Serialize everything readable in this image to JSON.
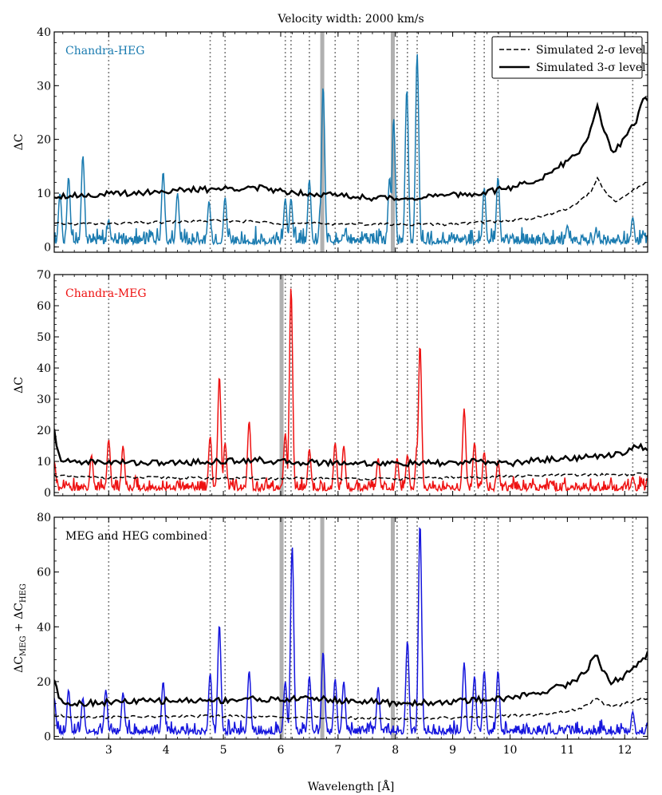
{
  "figure": {
    "title": "Velocity width: 2000 km/s",
    "xlabel": "Wavelength [Å]",
    "xlim": [
      2.05,
      12.4
    ],
    "xticks": [
      3,
      4,
      5,
      6,
      7,
      8,
      9,
      10,
      11,
      12
    ],
    "xtick_labels": [
      "3",
      "4",
      "5",
      "6",
      "7",
      "8",
      "9",
      "10",
      "11",
      "12"
    ],
    "colors": {
      "heg": "#1a7bb0",
      "meg": "#ee1111",
      "combined": "#1515dd",
      "threshold": "#000000",
      "band": "#b0b0b0",
      "guide": "#808080"
    },
    "legend": {
      "items": [
        {
          "label": "Simulated 2-σ level",
          "style": "dashed"
        },
        {
          "label": "Simulated 3-σ level",
          "style": "solid"
        }
      ]
    },
    "vertical_lines": [
      3.0,
      4.77,
      5.03,
      6.08,
      6.18,
      6.5,
      6.95,
      7.35,
      8.03,
      8.21,
      8.38,
      9.38,
      9.55,
      9.79,
      12.14
    ]
  },
  "chart_data": [
    {
      "type": "line",
      "panel_label": "Chandra-HEG",
      "ylabel": "ΔC",
      "ylim": [
        -1,
        40
      ],
      "yticks": [
        0,
        10,
        20,
        30,
        40
      ],
      "bands": [
        [
          6.69,
          6.76
        ],
        [
          7.92,
          7.99
        ]
      ],
      "baseline": 0.5,
      "noise_amp": 1.6,
      "peaks": [
        [
          2.15,
          10
        ],
        [
          2.3,
          13
        ],
        [
          2.55,
          17
        ],
        [
          3.0,
          5
        ],
        [
          3.95,
          14
        ],
        [
          4.2,
          10
        ],
        [
          4.75,
          8.5
        ],
        [
          5.03,
          9.2
        ],
        [
          6.08,
          9
        ],
        [
          6.18,
          9
        ],
        [
          6.5,
          12.5
        ],
        [
          6.7,
          8.5
        ],
        [
          6.74,
          30
        ],
        [
          7.9,
          13
        ],
        [
          7.97,
          24
        ],
        [
          8.2,
          29.5
        ],
        [
          8.38,
          36
        ],
        [
          9.55,
          11
        ],
        [
          9.79,
          13
        ],
        [
          11.0,
          4
        ],
        [
          11.5,
          3
        ],
        [
          12.14,
          5.5
        ]
      ],
      "series": [
        {
          "name": "Chandra-HEG ΔC"
        },
        {
          "name": "Simulated 2-σ level",
          "points": [
            [
              2.05,
              4.3
            ],
            [
              3.0,
              4.3
            ],
            [
              4.0,
              4.6
            ],
            [
              5.0,
              4.9
            ],
            [
              5.5,
              4.7
            ],
            [
              6.0,
              4.4
            ],
            [
              7.0,
              4.3
            ],
            [
              8.0,
              4.2
            ],
            [
              9.0,
              4.2
            ],
            [
              9.5,
              4.6
            ],
            [
              10.0,
              4.9
            ],
            [
              10.5,
              5.5
            ],
            [
              11.0,
              7.0
            ],
            [
              11.4,
              10.0
            ],
            [
              11.52,
              12.8
            ],
            [
              11.7,
              9.5
            ],
            [
              11.85,
              8.3
            ],
            [
              12.0,
              9.5
            ],
            [
              12.4,
              12.2
            ]
          ]
        },
        {
          "name": "Simulated 3-σ level",
          "points": [
            [
              2.05,
              9.5
            ],
            [
              3.0,
              9.8
            ],
            [
              4.0,
              10.4
            ],
            [
              5.0,
              10.8
            ],
            [
              5.5,
              11.1
            ],
            [
              6.0,
              10.4
            ],
            [
              6.5,
              10.0
            ],
            [
              7.0,
              9.6
            ],
            [
              7.5,
              9.2
            ],
            [
              8.0,
              9.0
            ],
            [
              9.0,
              9.6
            ],
            [
              9.5,
              10.0
            ],
            [
              10.0,
              11.0
            ],
            [
              10.5,
              12.5
            ],
            [
              10.8,
              14.5
            ],
            [
              11.2,
              17.5
            ],
            [
              11.42,
              22.0
            ],
            [
              11.52,
              26.0
            ],
            [
              11.62,
              22.5
            ],
            [
              11.8,
              17.5
            ],
            [
              12.0,
              20.0
            ],
            [
              12.2,
              23.5
            ],
            [
              12.35,
              28.0
            ],
            [
              12.4,
              27.5
            ]
          ]
        }
      ]
    },
    {
      "type": "line",
      "panel_label": "Chandra-MEG",
      "ylabel": "ΔC",
      "ylim": [
        -1,
        70
      ],
      "yticks": [
        0,
        10,
        20,
        30,
        40,
        50,
        60,
        70
      ],
      "bands": [
        [
          5.98,
          6.05
        ]
      ],
      "baseline": 0.6,
      "noise_amp": 2.2,
      "peaks": [
        [
          2.05,
          10
        ],
        [
          2.7,
          12
        ],
        [
          3.0,
          17
        ],
        [
          3.25,
          15
        ],
        [
          4.77,
          18
        ],
        [
          4.93,
          37.5
        ],
        [
          5.03,
          16
        ],
        [
          5.45,
          23
        ],
        [
          6.08,
          19
        ],
        [
          6.18,
          66
        ],
        [
          6.5,
          14
        ],
        [
          6.95,
          16
        ],
        [
          7.1,
          15
        ],
        [
          7.7,
          11
        ],
        [
          8.03,
          11
        ],
        [
          8.21,
          12
        ],
        [
          8.38,
          15.5
        ],
        [
          8.43,
          47.5
        ],
        [
          9.2,
          27
        ],
        [
          9.38,
          16
        ],
        [
          9.55,
          13
        ],
        [
          9.79,
          10
        ],
        [
          12.14,
          5
        ],
        [
          12.4,
          4.5
        ]
      ],
      "series": [
        {
          "name": "Chandra-MEG ΔC"
        },
        {
          "name": "Simulated 2-σ level",
          "points": [
            [
              2.05,
              5.5
            ],
            [
              2.4,
              5.0
            ],
            [
              3.0,
              4.8
            ],
            [
              4.0,
              4.8
            ],
            [
              5.0,
              4.6
            ],
            [
              6.0,
              4.5
            ],
            [
              7.0,
              4.5
            ],
            [
              8.0,
              4.4
            ],
            [
              9.0,
              4.8
            ],
            [
              10.0,
              5.2
            ],
            [
              11.0,
              5.6
            ],
            [
              12.0,
              5.8
            ],
            [
              12.4,
              6.0
            ]
          ]
        },
        {
          "name": "Simulated 3-σ level",
          "points": [
            [
              2.05,
              20.0
            ],
            [
              2.1,
              13.0
            ],
            [
              2.2,
              10.0
            ],
            [
              3.0,
              9.8
            ],
            [
              4.0,
              9.5
            ],
            [
              5.0,
              10.0
            ],
            [
              5.5,
              10.6
            ],
            [
              6.0,
              9.8
            ],
            [
              7.0,
              9.6
            ],
            [
              8.0,
              9.3
            ],
            [
              9.0,
              9.5
            ],
            [
              9.5,
              10.0
            ],
            [
              10.0,
              9.3
            ],
            [
              10.5,
              10.5
            ],
            [
              11.0,
              11.0
            ],
            [
              11.5,
              11.5
            ],
            [
              12.0,
              13.0
            ],
            [
              12.2,
              15.0
            ],
            [
              12.4,
              14.0
            ]
          ]
        }
      ]
    },
    {
      "type": "line",
      "panel_label": "MEG and HEG combined",
      "ylabel": "ΔC_MEG + ΔC_HEG",
      "ylim": [
        -1,
        80
      ],
      "yticks": [
        0,
        20,
        40,
        60,
        80
      ],
      "bands": [
        [
          5.98,
          6.05
        ],
        [
          6.69,
          6.76
        ],
        [
          7.92,
          7.99
        ]
      ],
      "baseline": 0.8,
      "noise_amp": 2.6,
      "peaks": [
        [
          2.05,
          14
        ],
        [
          2.3,
          17
        ],
        [
          2.55,
          14
        ],
        [
          2.95,
          17
        ],
        [
          3.25,
          16
        ],
        [
          3.95,
          20
        ],
        [
          4.77,
          23
        ],
        [
          4.93,
          41
        ],
        [
          5.45,
          24
        ],
        [
          6.08,
          20
        ],
        [
          6.2,
          69.5
        ],
        [
          6.5,
          22
        ],
        [
          6.74,
          31
        ],
        [
          6.95,
          21
        ],
        [
          7.1,
          20
        ],
        [
          7.7,
          18
        ],
        [
          8.21,
          35
        ],
        [
          8.43,
          78
        ],
        [
          9.2,
          27
        ],
        [
          9.38,
          22
        ],
        [
          9.55,
          24
        ],
        [
          9.79,
          24
        ],
        [
          11.0,
          4
        ],
        [
          12.14,
          9
        ],
        [
          12.4,
          5
        ]
      ],
      "series": [
        {
          "name": "Combined ΔC"
        },
        {
          "name": "Simulated 2-σ level",
          "points": [
            [
              2.05,
              7.5
            ],
            [
              3.0,
              7.0
            ],
            [
              4.0,
              7.2
            ],
            [
              5.0,
              7.4
            ],
            [
              6.0,
              7.0
            ],
            [
              7.0,
              6.8
            ],
            [
              8.0,
              6.5
            ],
            [
              9.0,
              6.8
            ],
            [
              10.0,
              7.5
            ],
            [
              10.5,
              8.0
            ],
            [
              11.0,
              9.0
            ],
            [
              11.4,
              11.5
            ],
            [
              11.5,
              14.5
            ],
            [
              11.65,
              11.5
            ],
            [
              11.85,
              11.0
            ],
            [
              12.0,
              12.0
            ],
            [
              12.4,
              14.0
            ]
          ]
        },
        {
          "name": "Simulated 3-σ level",
          "points": [
            [
              2.05,
              21.0
            ],
            [
              2.12,
              14.5
            ],
            [
              2.3,
              12.0
            ],
            [
              3.0,
              12.5
            ],
            [
              4.0,
              13.0
            ],
            [
              5.0,
              13.2
            ],
            [
              5.5,
              13.8
            ],
            [
              6.0,
              13.2
            ],
            [
              6.5,
              14.2
            ],
            [
              7.0,
              13.0
            ],
            [
              7.5,
              12.8
            ],
            [
              8.0,
              12.0
            ],
            [
              9.0,
              12.6
            ],
            [
              9.5,
              13.5
            ],
            [
              10.0,
              14.0
            ],
            [
              10.5,
              16.0
            ],
            [
              11.0,
              19.0
            ],
            [
              11.3,
              23.0
            ],
            [
              11.5,
              30.5
            ],
            [
              11.62,
              24.0
            ],
            [
              11.75,
              19.5
            ],
            [
              12.0,
              22.0
            ],
            [
              12.2,
              26.0
            ],
            [
              12.4,
              30.0
            ]
          ]
        }
      ]
    }
  ]
}
